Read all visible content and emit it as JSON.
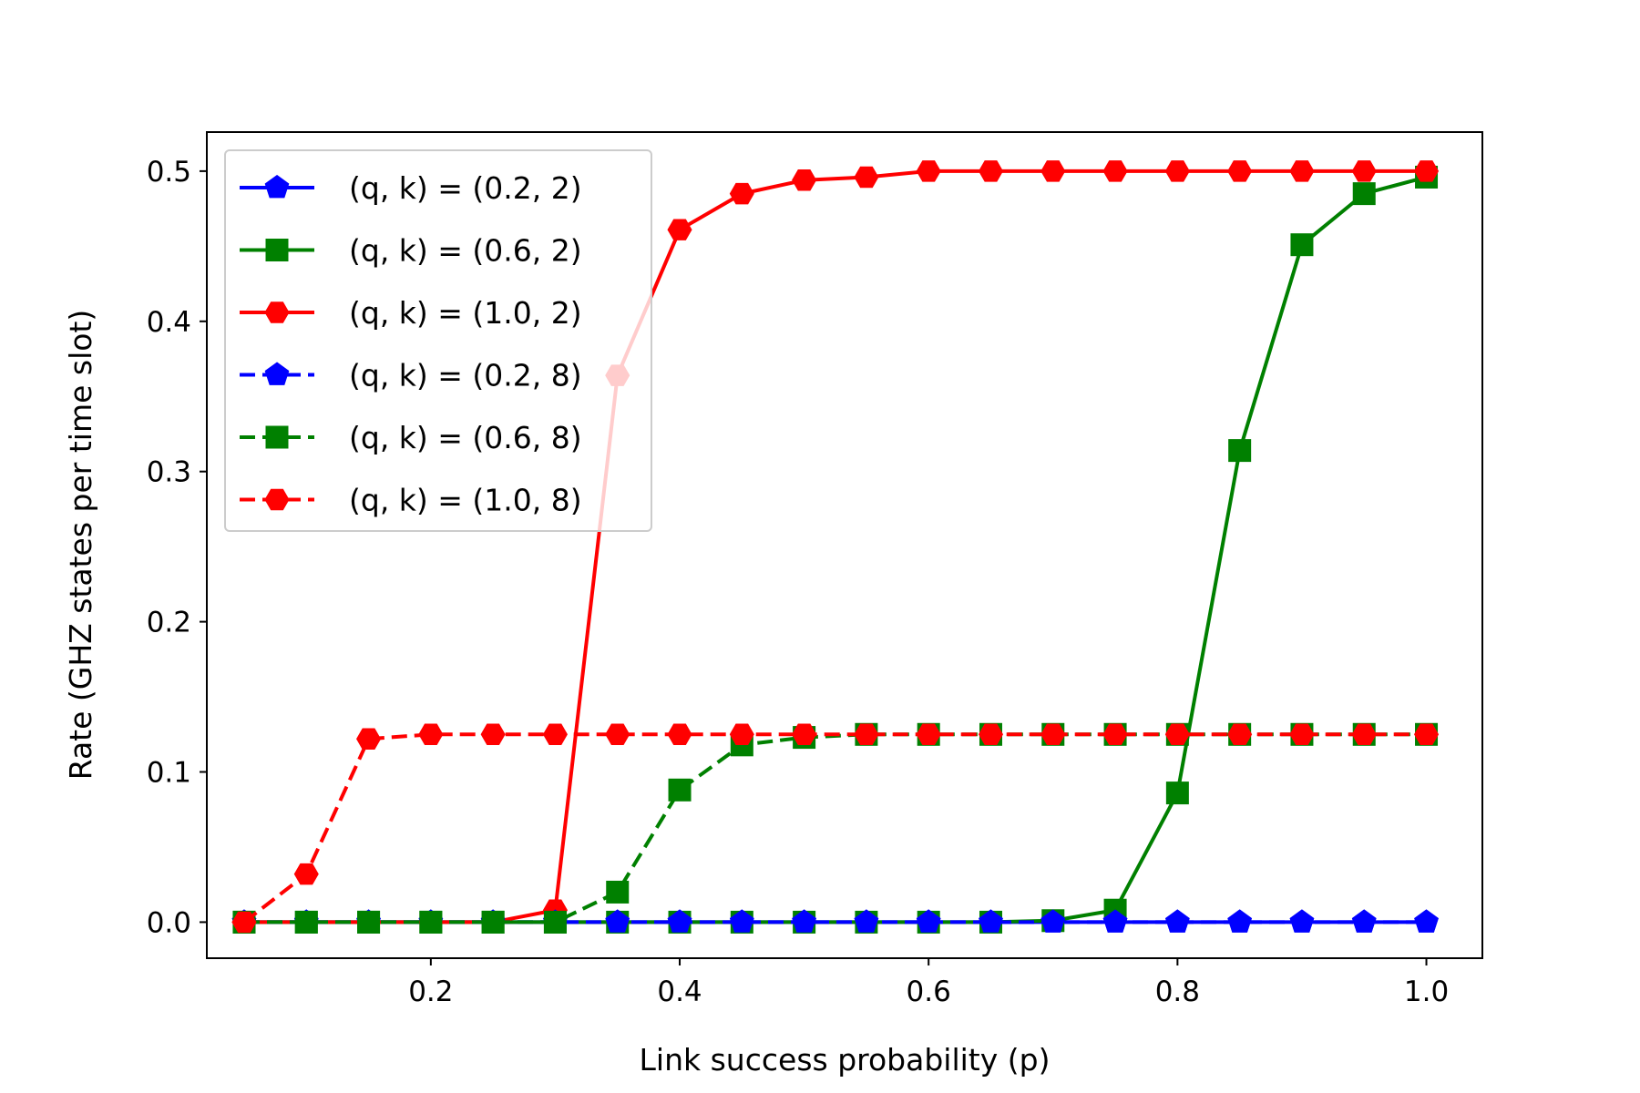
{
  "chart_data": {
    "type": "line",
    "xlabel": "Link success probability (p)",
    "ylabel": "Rate (GHZ states per time slot)",
    "xlim": [
      0.02,
      1.045
    ],
    "ylim": [
      -0.024,
      0.526
    ],
    "xticks": [
      0.2,
      0.4,
      0.6,
      0.8,
      1.0
    ],
    "xtick_labels": [
      "0.2",
      "0.4",
      "0.6",
      "0.8",
      "1.0"
    ],
    "yticks": [
      0.0,
      0.1,
      0.2,
      0.3,
      0.4,
      0.5
    ],
    "ytick_labels": [
      "0.0",
      "0.1",
      "0.2",
      "0.3",
      "0.4",
      "0.5"
    ],
    "grid": false,
    "legend_position": "upper-left",
    "x": [
      0.05,
      0.1,
      0.15,
      0.2,
      0.25,
      0.3,
      0.35,
      0.4,
      0.45,
      0.5,
      0.55,
      0.6,
      0.65,
      0.7,
      0.75,
      0.8,
      0.85,
      0.9,
      0.95,
      1.0
    ],
    "series": [
      {
        "name": "(q, k) = (0.2, 2)",
        "color": "#0000ff",
        "linestyle": "solid",
        "marker": "pentagon",
        "values": [
          0,
          0,
          0,
          0,
          0,
          0,
          0,
          0,
          0,
          0,
          0,
          0,
          0,
          0,
          0,
          0,
          0,
          0,
          0,
          0
        ]
      },
      {
        "name": "(q, k) = (0.6, 2)",
        "color": "#008000",
        "linestyle": "solid",
        "marker": "square",
        "values": [
          0,
          0,
          0,
          0,
          0,
          0,
          0,
          0,
          0,
          0,
          0,
          0,
          0,
          0.001,
          0.008,
          0.086,
          0.314,
          0.451,
          0.485,
          0.496
        ]
      },
      {
        "name": "(q, k) = (1.0, 2)",
        "color": "#ff0000",
        "linestyle": "solid",
        "marker": "hexagon",
        "values": [
          0,
          0,
          0,
          0,
          0,
          0.008,
          0.364,
          0.461,
          0.485,
          0.494,
          0.496,
          0.5,
          0.5,
          0.5,
          0.5,
          0.5,
          0.5,
          0.5,
          0.5,
          0.5
        ]
      },
      {
        "name": "(q, k) = (0.2, 8)",
        "color": "#0000ff",
        "linestyle": "dashed",
        "marker": "pentagon",
        "values": [
          0,
          0,
          0,
          0,
          0,
          0,
          0,
          0,
          0,
          0,
          0,
          0,
          0,
          0,
          0,
          0,
          0,
          0,
          0,
          0
        ]
      },
      {
        "name": "(q, k) = (0.6, 8)",
        "color": "#008000",
        "linestyle": "dashed",
        "marker": "square",
        "values": [
          0,
          0,
          0,
          0,
          0,
          0,
          0.02,
          0.088,
          0.118,
          0.123,
          0.125,
          0.125,
          0.125,
          0.125,
          0.125,
          0.125,
          0.125,
          0.125,
          0.125,
          0.125
        ]
      },
      {
        "name": "(q, k) = (1.0, 8)",
        "color": "#ff0000",
        "linestyle": "dashed",
        "marker": "hexagon",
        "values": [
          0,
          0.032,
          0.122,
          0.125,
          0.125,
          0.125,
          0.125,
          0.125,
          0.125,
          0.125,
          0.125,
          0.125,
          0.125,
          0.125,
          0.125,
          0.125,
          0.125,
          0.125,
          0.125,
          0.125
        ]
      }
    ]
  }
}
